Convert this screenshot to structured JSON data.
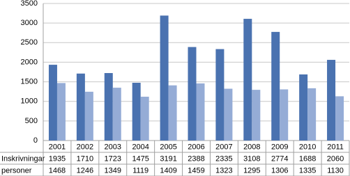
{
  "chart_data": {
    "type": "bar",
    "categories": [
      "2001",
      "2002",
      "2003",
      "2004",
      "2005",
      "2006",
      "2007",
      "2008",
      "2009",
      "2010",
      "2011"
    ],
    "series": [
      {
        "name": "Inskrivningar",
        "color": "#4a72b0",
        "values": [
          1935,
          1710,
          1723,
          1475,
          3191,
          2388,
          2335,
          3108,
          2774,
          1688,
          2060
        ]
      },
      {
        "name": "personer",
        "color": "#95acd6",
        "values": [
          1468,
          1246,
          1349,
          1119,
          1409,
          1459,
          1323,
          1295,
          1306,
          1335,
          1130
        ]
      }
    ],
    "ylim": [
      0,
      3500
    ],
    "yticks": [
      0,
      500,
      1000,
      1500,
      2000,
      2500,
      3000,
      3500
    ],
    "grid": true
  }
}
